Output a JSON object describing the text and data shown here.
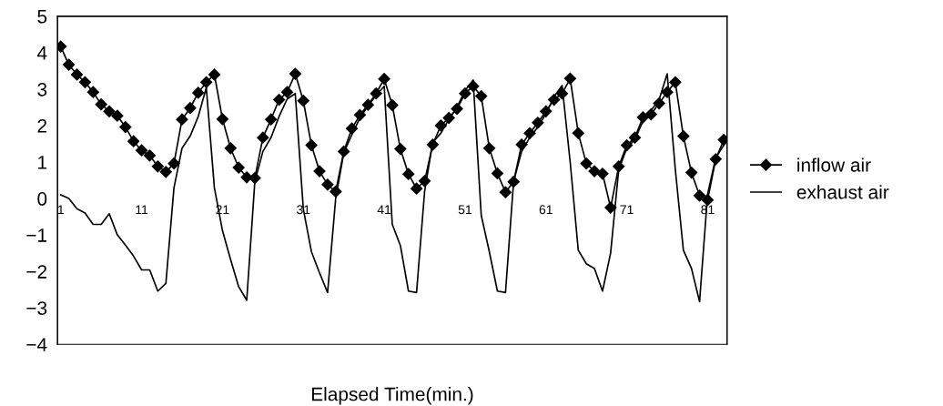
{
  "chart_data": {
    "type": "line",
    "xlabel": "Elapsed Time(min.)",
    "categories": [
      "1",
      null,
      null,
      null,
      null,
      null,
      null,
      null,
      null,
      null,
      "11",
      null,
      null,
      null,
      null,
      null,
      null,
      null,
      null,
      null,
      "21",
      null,
      null,
      null,
      null,
      null,
      null,
      null,
      null,
      null,
      "31",
      null,
      null,
      null,
      null,
      null,
      null,
      null,
      null,
      null,
      "41",
      null,
      null,
      null,
      null,
      null,
      null,
      null,
      null,
      null,
      "51",
      null,
      null,
      null,
      null,
      null,
      null,
      null,
      null,
      null,
      "61",
      null,
      null,
      null,
      null,
      null,
      null,
      null,
      null,
      null,
      "71",
      null,
      null,
      null,
      null,
      null,
      null,
      null,
      null,
      null,
      "81",
      null,
      null
    ],
    "ylim": [
      -4,
      5
    ],
    "yticks": [
      -4,
      -3,
      -2,
      -1,
      0,
      1,
      2,
      3,
      4,
      5
    ],
    "grid": false,
    "legend": "right",
    "series": [
      {
        "name": "inflow air",
        "color": "#000000",
        "marker": "diamond",
        "values": [
          4.17,
          3.67,
          3.4,
          3.19,
          2.92,
          2.58,
          2.39,
          2.27,
          1.96,
          1.57,
          1.32,
          1.18,
          0.88,
          0.73,
          0.96,
          2.17,
          2.48,
          2.9,
          3.19,
          3.4,
          2.18,
          1.38,
          0.85,
          0.58,
          0.56,
          1.67,
          2.17,
          2.71,
          2.92,
          3.42,
          2.68,
          1.46,
          0.75,
          0.38,
          0.19,
          1.29,
          1.92,
          2.29,
          2.57,
          2.88,
          3.28,
          2.56,
          1.36,
          0.67,
          0.27,
          0.48,
          1.48,
          2.0,
          2.21,
          2.46,
          2.88,
          3.08,
          2.81,
          1.38,
          0.69,
          0.17,
          0.46,
          1.48,
          1.79,
          2.08,
          2.39,
          2.71,
          2.88,
          3.29,
          1.79,
          0.96,
          0.75,
          0.68,
          -0.25,
          0.88,
          1.46,
          1.67,
          2.23,
          2.31,
          2.61,
          2.92,
          3.19,
          1.71,
          0.71,
          0.08,
          -0.04,
          1.08,
          1.61
        ]
      },
      {
        "name": "exhaust air",
        "color": "#000000",
        "marker": "none",
        "values": [
          0.1,
          0.0,
          -0.28,
          -0.4,
          -0.71,
          -0.71,
          -0.42,
          -1.0,
          -1.28,
          -1.58,
          -1.96,
          -1.96,
          -2.54,
          -2.33,
          0.29,
          1.38,
          1.71,
          2.25,
          3.04,
          0.29,
          -0.88,
          -1.67,
          -2.42,
          -2.79,
          0.46,
          1.29,
          1.67,
          2.25,
          2.73,
          2.88,
          -0.29,
          -1.46,
          -2.04,
          -2.58,
          0.0,
          1.25,
          1.75,
          2.21,
          2.54,
          2.83,
          3.08,
          -0.71,
          -1.29,
          -2.54,
          -2.58,
          0.2,
          1.54,
          1.79,
          2.17,
          2.5,
          2.96,
          3.25,
          -0.46,
          -1.46,
          -2.54,
          -2.58,
          0.46,
          1.29,
          1.67,
          1.96,
          2.33,
          2.79,
          3.1,
          1.0,
          -1.42,
          -1.79,
          -1.92,
          -2.54,
          -1.5,
          0.79,
          1.38,
          1.62,
          2.12,
          2.42,
          2.71,
          3.42,
          0.8,
          -1.42,
          -1.92,
          -2.83,
          0.12,
          1.12,
          1.46
        ]
      }
    ]
  }
}
